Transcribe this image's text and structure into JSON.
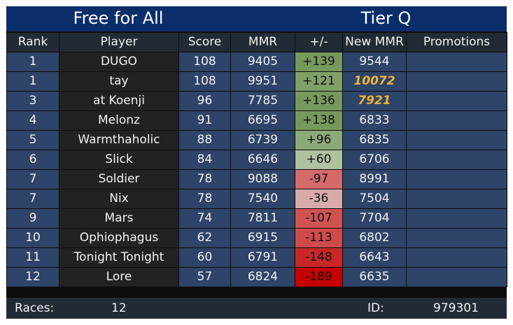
{
  "header": {
    "mode": "Free for All",
    "tier": "Tier Q"
  },
  "columns": [
    "Rank",
    "Player",
    "Score",
    "MMR",
    "+/-",
    "New MMR",
    "Promotions"
  ],
  "rows": [
    {
      "rank": "1",
      "player": "DUGO",
      "score": "108",
      "mmr": "9405",
      "delta": "+139",
      "delta_color": "#76995c",
      "new_mmr": "9544",
      "new_highlight": false,
      "promotion": ""
    },
    {
      "rank": "1",
      "player": "tay",
      "score": "108",
      "mmr": "9951",
      "delta": "+121",
      "delta_color": "#7fa066",
      "new_mmr": "10072",
      "new_highlight": true,
      "promotion": ""
    },
    {
      "rank": "3",
      "player": "at Koenji",
      "score": "96",
      "mmr": "7785",
      "delta": "+136",
      "delta_color": "#78995e",
      "new_mmr": "7921",
      "new_highlight": true,
      "promotion": ""
    },
    {
      "rank": "4",
      "player": "Melonz",
      "score": "91",
      "mmr": "6695",
      "delta": "+138",
      "delta_color": "#76995c",
      "new_mmr": "6833",
      "new_highlight": false,
      "promotion": ""
    },
    {
      "rank": "5",
      "player": "Warmthaholic",
      "score": "88",
      "mmr": "6739",
      "delta": "+96",
      "delta_color": "#8caa78",
      "new_mmr": "6835",
      "new_highlight": false,
      "promotion": ""
    },
    {
      "rank": "6",
      "player": "Slick",
      "score": "84",
      "mmr": "6646",
      "delta": "+60",
      "delta_color": "#aec2a0",
      "new_mmr": "6706",
      "new_highlight": false,
      "promotion": ""
    },
    {
      "rank": "7",
      "player": "Soldier",
      "score": "78",
      "mmr": "9088",
      "delta": "-97",
      "delta_color": "#d46a6a",
      "new_mmr": "8991",
      "new_highlight": false,
      "promotion": ""
    },
    {
      "rank": "7",
      "player": "Nix",
      "score": "78",
      "mmr": "7540",
      "delta": "-36",
      "delta_color": "#d9aaaa",
      "new_mmr": "7504",
      "new_highlight": false,
      "promotion": ""
    },
    {
      "rank": "9",
      "player": "Mars",
      "score": "74",
      "mmr": "7811",
      "delta": "-107",
      "delta_color": "#d05252",
      "new_mmr": "7704",
      "new_highlight": false,
      "promotion": ""
    },
    {
      "rank": "10",
      "player": "Ophiophagus",
      "score": "62",
      "mmr": "6915",
      "delta": "-113",
      "delta_color": "#cf4b4b",
      "new_mmr": "6802",
      "new_highlight": false,
      "promotion": ""
    },
    {
      "rank": "11",
      "player": "Tonight Tonight",
      "score": "60",
      "mmr": "6791",
      "delta": "-148",
      "delta_color": "#c92727",
      "new_mmr": "6643",
      "new_highlight": false,
      "promotion": ""
    },
    {
      "rank": "12",
      "player": "Lore",
      "score": "57",
      "mmr": "6824",
      "delta": "-189",
      "delta_color": "#c40000",
      "new_mmr": "6635",
      "new_highlight": false,
      "promotion": ""
    }
  ],
  "footer": {
    "races_label": "Races:",
    "races_value": "12",
    "id_label": "ID:",
    "id_value": "979301"
  }
}
